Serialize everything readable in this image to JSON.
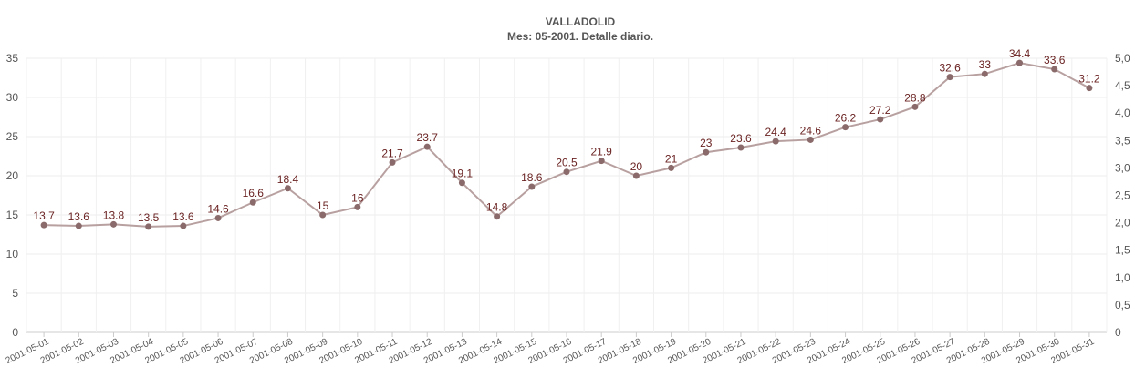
{
  "chart_data": {
    "type": "line",
    "title": "VALLADOLID",
    "subtitle": "Mes: 05-2001. Detalle diario.",
    "xlabel": "",
    "ylabel": "",
    "categories": [
      "2001-05-01",
      "2001-05-02",
      "2001-05-03",
      "2001-05-04",
      "2001-05-05",
      "2001-05-06",
      "2001-05-07",
      "2001-05-08",
      "2001-05-09",
      "2001-05-10",
      "2001-05-11",
      "2001-05-12",
      "2001-05-13",
      "2001-05-14",
      "2001-05-15",
      "2001-05-16",
      "2001-05-17",
      "2001-05-18",
      "2001-05-19",
      "2001-05-20",
      "2001-05-21",
      "2001-05-22",
      "2001-05-23",
      "2001-05-24",
      "2001-05-25",
      "2001-05-26",
      "2001-05-27",
      "2001-05-28",
      "2001-05-29",
      "2001-05-30",
      "2001-05-31"
    ],
    "series": [
      {
        "values": [
          13.7,
          13.6,
          13.8,
          13.5,
          13.6,
          14.6,
          16.6,
          18.4,
          15,
          16,
          21.7,
          23.7,
          19.1,
          14.8,
          18.6,
          20.5,
          21.9,
          20,
          21,
          23,
          23.6,
          24.4,
          24.6,
          26.2,
          27.2,
          28.8,
          32.6,
          33,
          34.4,
          33.6,
          31.2
        ],
        "labels": [
          "13.7",
          "13.6",
          "13.8",
          "13.5",
          "13.6",
          "14.6",
          "16.6",
          "18.4",
          "15",
          "16",
          "21.7",
          "23.7",
          "19.1",
          "14.8",
          "18.6",
          "20.5",
          "21.9",
          "20",
          "21",
          "23",
          "23.6",
          "24.4",
          "24.6",
          "26.2",
          "27.2",
          "28.8",
          "32.6",
          "33",
          "34.4",
          "33.6",
          "31.2"
        ],
        "line_color": "#b8a0a0",
        "marker_color": "#8a6a6a",
        "label_color": "#6b2323"
      }
    ],
    "ylim": [
      0,
      35
    ],
    "yticks": [
      "0",
      "5",
      "10",
      "15",
      "20",
      "25",
      "30",
      "35"
    ],
    "y2lim": [
      0,
      5
    ],
    "y2ticks": [
      "0",
      "0,5",
      "1,0",
      "1,5",
      "2,0",
      "2,5",
      "3,0",
      "3,5",
      "4,0",
      "4,5",
      "5,0"
    ],
    "grid": true,
    "legend": "none"
  }
}
